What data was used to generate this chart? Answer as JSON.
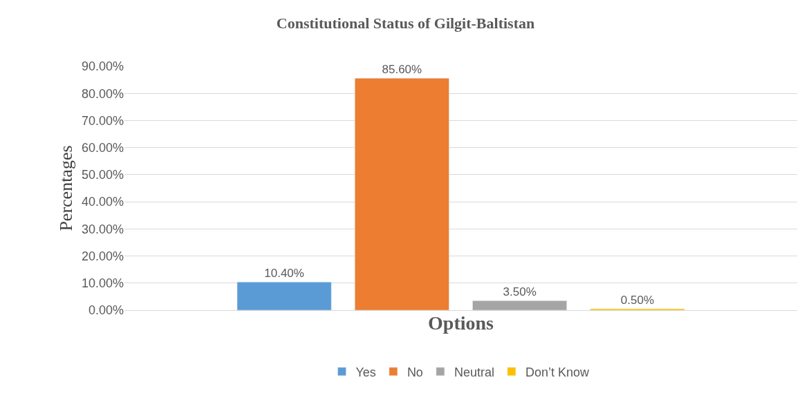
{
  "chart_data": {
    "type": "bar",
    "title": "Constitutional Status of Gilgit-Baltistan",
    "xlabel": "Options",
    "ylabel": "Percentages",
    "categories": [
      null
    ],
    "series": [
      {
        "name": "Yes",
        "color": "#5b9bd5",
        "values": [
          10.4
        ],
        "value_labels": [
          "10.40%"
        ]
      },
      {
        "name": "No",
        "color": "#ed7d31",
        "values": [
          85.6
        ],
        "value_labels": [
          "85.60%"
        ]
      },
      {
        "name": "Neutral",
        "color": "#a5a5a5",
        "values": [
          3.5
        ],
        "value_labels": [
          "3.50%"
        ]
      },
      {
        "name": "Don’t Know",
        "color": "#ffc000",
        "values": [
          0.5
        ],
        "value_labels": [
          "0.50%"
        ]
      }
    ],
    "ylim": [
      0,
      90
    ],
    "yticks": [
      {
        "value": 0,
        "label": "0.00%"
      },
      {
        "value": 10,
        "label": "10.00%"
      },
      {
        "value": 20,
        "label": "20.00%"
      },
      {
        "value": 30,
        "label": "30.00%"
      },
      {
        "value": 40,
        "label": "40.00%"
      },
      {
        "value": 50,
        "label": "50.00%"
      },
      {
        "value": 60,
        "label": "60.00%"
      },
      {
        "value": 70,
        "label": "70.00%"
      },
      {
        "value": 80,
        "label": "80.00%"
      },
      {
        "value": 90,
        "label": "90.00%"
      }
    ],
    "grid": "y",
    "legend": "bottom"
  }
}
